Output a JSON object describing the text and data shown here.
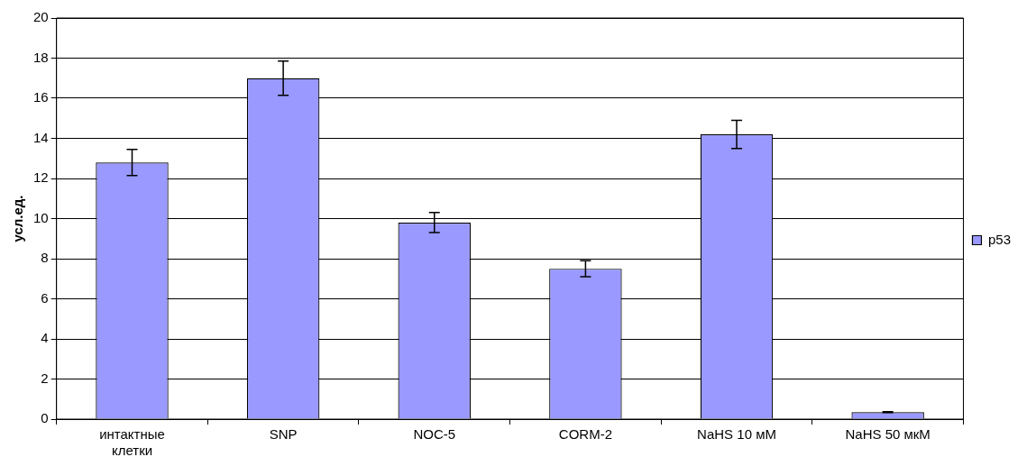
{
  "chart_data": {
    "type": "bar",
    "ylabel": "усл.ед.",
    "categories": [
      "интактные клетки",
      "SNP",
      "NOC-5",
      "CORM-2",
      "NaHS 10 мМ",
      "NaHS 50 мкМ"
    ],
    "series": [
      {
        "name": "p53",
        "color": "#9999ff",
        "values": [
          12.8,
          17.0,
          9.8,
          7.5,
          14.2,
          0.35
        ],
        "errors": [
          0.65,
          0.85,
          0.5,
          0.4,
          0.7,
          0.02
        ]
      }
    ],
    "ylim": [
      0,
      20
    ],
    "yticks": [
      0,
      2,
      4,
      6,
      8,
      10,
      12,
      14,
      16,
      18,
      20
    ],
    "grid": "y",
    "legend": "right"
  }
}
